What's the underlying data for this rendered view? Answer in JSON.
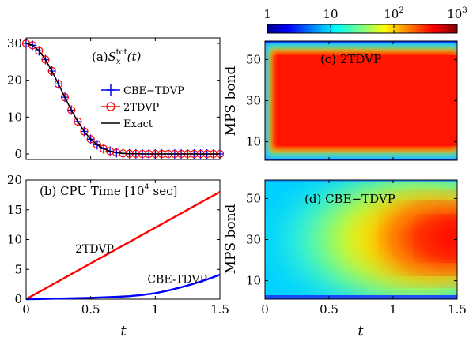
{
  "chart_data": [
    {
      "id": "a",
      "type": "line",
      "title": "(a)",
      "title_math": {
        "base": "S",
        "sub": "x",
        "sup": "tot",
        "arg": "(t)"
      },
      "xlim": [
        0,
        1.5
      ],
      "ylim": [
        0,
        30
      ],
      "xticks": [],
      "yticks": [
        0,
        10,
        20,
        30
      ],
      "x": [
        0,
        0.05,
        0.1,
        0.15,
        0.2,
        0.25,
        0.3,
        0.35,
        0.4,
        0.45,
        0.5,
        0.55,
        0.6,
        0.65,
        0.7,
        0.75,
        0.8,
        0.85,
        0.9,
        0.95,
        1.0,
        1.05,
        1.1,
        1.15,
        1.2,
        1.25,
        1.3,
        1.35,
        1.4,
        1.45,
        1.5
      ],
      "series": [
        {
          "name": "CBE−TDVP",
          "color": "#0000ff",
          "marker": "plus",
          "values": [
            30,
            29.5,
            28.0,
            25.6,
            22.5,
            19.0,
            15.4,
            11.9,
            8.8,
            6.1,
            4.0,
            2.5,
            1.4,
            0.75,
            0.35,
            0.15,
            0.05,
            0.02,
            0,
            0,
            0,
            0,
            0,
            0,
            0,
            0,
            0,
            0,
            0,
            0,
            0
          ]
        },
        {
          "name": "2TDVP",
          "color": "#ff0000",
          "marker": "circle",
          "values": [
            30,
            29.5,
            28.0,
            25.6,
            22.5,
            19.0,
            15.4,
            11.9,
            8.8,
            6.1,
            4.0,
            2.5,
            1.4,
            0.75,
            0.35,
            0.15,
            0.05,
            0.02,
            0,
            0,
            0,
            0,
            0,
            0,
            0,
            0,
            0,
            0,
            0,
            0,
            0
          ]
        },
        {
          "name": "Exact",
          "color": "#000000",
          "marker": "none",
          "values": [
            30,
            29.5,
            28.0,
            25.6,
            22.5,
            19.0,
            15.4,
            11.9,
            8.8,
            6.1,
            4.0,
            2.5,
            1.4,
            0.75,
            0.35,
            0.15,
            0.05,
            0.02,
            0,
            0,
            0,
            0,
            0,
            0,
            0,
            0,
            0,
            0,
            0,
            0,
            0
          ]
        }
      ],
      "legend": "right"
    },
    {
      "id": "b",
      "type": "line",
      "title": "(b)  CPU Time [10",
      "title_sup": "4",
      "title_tail": " sec]",
      "xlabel": "t",
      "xlim": [
        0,
        1.5
      ],
      "ylim": [
        0,
        20
      ],
      "xticks": [
        0,
        0.5,
        1,
        1.5
      ],
      "xtick_labels": [
        "0",
        "0.5",
        "1",
        "1.5"
      ],
      "yticks": [
        0,
        5,
        10,
        15,
        20
      ],
      "x": [
        0,
        0.1,
        0.2,
        0.3,
        0.4,
        0.5,
        0.6,
        0.7,
        0.8,
        0.9,
        1.0,
        1.1,
        1.2,
        1.3,
        1.4,
        1.5
      ],
      "series": [
        {
          "name": "2TDVP",
          "color": "#ff0000",
          "values": [
            0,
            1.2,
            2.4,
            3.6,
            4.8,
            6.0,
            7.2,
            8.4,
            9.6,
            10.8,
            12.0,
            13.2,
            14.4,
            15.6,
            16.8,
            18.0
          ]
        },
        {
          "name": "CBE-TDVP",
          "color": "#0000ff",
          "values": [
            0,
            0.03,
            0.07,
            0.12,
            0.17,
            0.23,
            0.3,
            0.38,
            0.5,
            0.7,
            1.0,
            1.45,
            2.0,
            2.6,
            3.3,
            4.1
          ]
        }
      ],
      "labels": [
        {
          "text": "2TDVP",
          "x": 0.53,
          "y": 7.8
        },
        {
          "text": "CBE-TDVP",
          "x": 1.17,
          "y": 2.7
        }
      ]
    },
    {
      "id": "c",
      "type": "heatmap",
      "title": "(c)  2TDVP",
      "ylabel": "MPS bond",
      "xlim": [
        0,
        1.5
      ],
      "ylim": [
        1,
        59
      ],
      "xticks": [],
      "yticks": [
        10,
        30,
        50
      ],
      "color_scale": "log",
      "peak_value": 1000
    },
    {
      "id": "d",
      "type": "heatmap",
      "title": "(d)  CBE−TDVP",
      "ylabel": "MPS bond",
      "xlabel": "t",
      "xlim": [
        0,
        1.5
      ],
      "ylim": [
        1,
        59
      ],
      "xticks": [
        0,
        0.5,
        1,
        1.5
      ],
      "xtick_labels": [
        "0",
        "0.5",
        "1",
        "1.5"
      ],
      "yticks": [
        10,
        30,
        50
      ],
      "color_scale": "log",
      "peak_value": 1000
    }
  ],
  "colorbar": {
    "ticks": [
      1,
      10,
      100,
      1000
    ],
    "tick_labels": [
      {
        "base": "1",
        "sup": ""
      },
      {
        "base": "10",
        "sup": ""
      },
      {
        "base": "10",
        "sup": "2"
      },
      {
        "base": "10",
        "sup": "3"
      }
    ],
    "colormap": "jet"
  }
}
